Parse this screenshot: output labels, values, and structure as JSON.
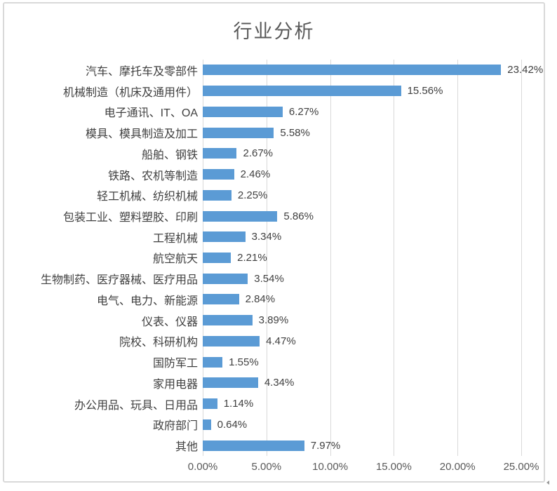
{
  "colors": {
    "bar": "#5b9bd5",
    "gridline": "#d9d9d9",
    "frame_border": "#d9d9d9",
    "title_text": "#595959",
    "category_text": "#404040",
    "value_text": "#404040",
    "axis_text": "#595959"
  },
  "chart_data": {
    "type": "bar",
    "orientation": "horizontal",
    "title": "行业分析",
    "xlabel": "",
    "ylabel": "",
    "xlim": [
      0,
      25
    ],
    "grid": true,
    "legend": false,
    "x_tick_values": [
      0,
      5,
      10,
      15,
      20,
      25
    ],
    "x_tick_labels": [
      "0.00%",
      "5.00%",
      "10.00%",
      "15.00%",
      "20.00%",
      "25.00%"
    ],
    "categories": [
      "汽车、摩托车及零部件",
      "机械制造（机床及通用件）",
      "电子通讯、IT、OA",
      "模具、模具制造及加工",
      "船舶、钢铁",
      "铁路、农机等制造",
      "轻工机械、纺织机械",
      "包装工业、塑料塑胶、印刷",
      "工程机械",
      "航空航天",
      "生物制药、医疗器械、医疗用品",
      "电气、电力、新能源",
      "仪表、仪器",
      "院校、科研机构",
      "国防军工",
      "家用电器",
      "办公用品、玩具、日用品",
      "政府部门",
      "其他"
    ],
    "values": [
      23.42,
      15.56,
      6.27,
      5.58,
      2.67,
      2.46,
      2.25,
      5.86,
      3.34,
      2.21,
      3.54,
      2.84,
      3.89,
      4.47,
      1.55,
      4.34,
      1.14,
      0.64,
      7.97
    ],
    "value_labels": [
      "23.42%",
      "15.56%",
      "6.27%",
      "5.58%",
      "2.67%",
      "2.46%",
      "2.25%",
      "5.86%",
      "3.34%",
      "2.21%",
      "3.54%",
      "2.84%",
      "3.89%",
      "4.47%",
      "1.55%",
      "4.34%",
      "1.14%",
      "0.64%",
      "7.97%"
    ]
  }
}
